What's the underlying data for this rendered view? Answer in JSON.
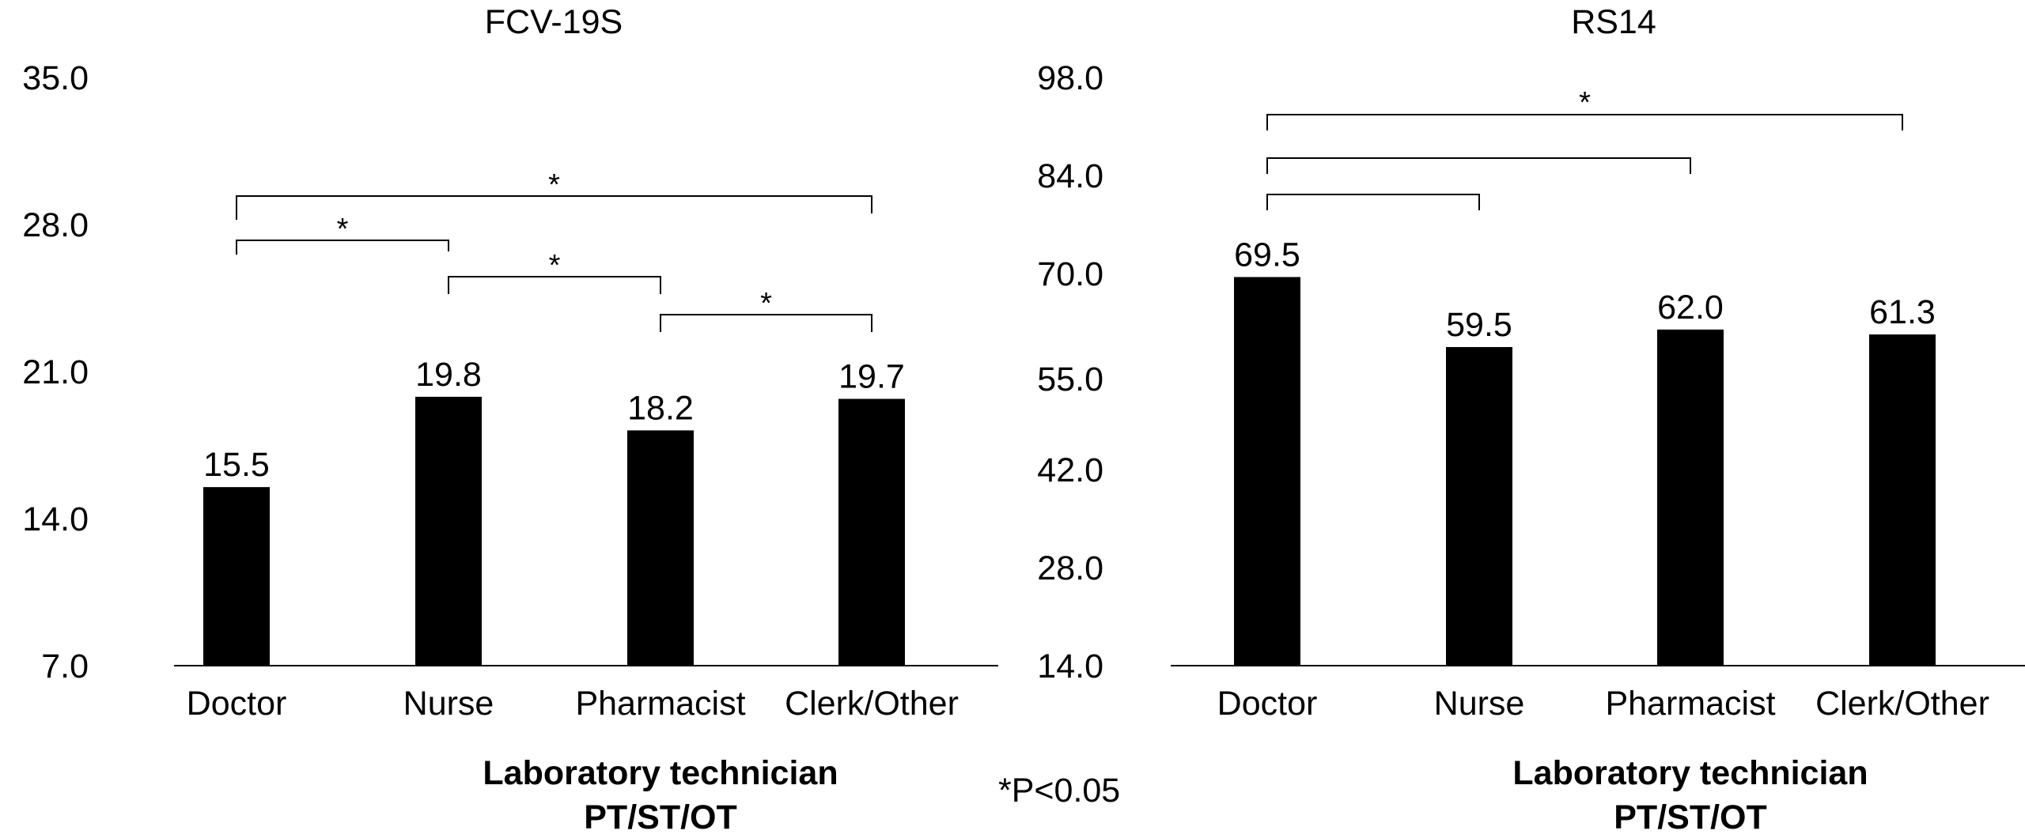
{
  "note": "*P<0.05",
  "chart_data": [
    {
      "type": "bar",
      "title": "FCV-19S",
      "categories": [
        "Doctor",
        "Nurse",
        "Pharmacist",
        "Clerk/Other"
      ],
      "values": [
        15.5,
        19.8,
        18.2,
        19.7
      ],
      "value_labels": [
        "15.5",
        "19.8",
        "18.2",
        "19.7"
      ],
      "ylim": [
        7.0,
        35.0
      ],
      "yticks": [
        "7.0",
        "14.0",
        "21.0",
        "28.0",
        "35.0"
      ],
      "xlabel": [
        "Laboratory technician",
        "PT/ST/OT"
      ],
      "grid": false,
      "bar_color": "#000000",
      "significance": [
        {
          "from": 0,
          "to": 3,
          "label": "*"
        },
        {
          "from": 0,
          "to": 1,
          "label": "*"
        },
        {
          "from": 1,
          "to": 2,
          "label": "*"
        },
        {
          "from": 2,
          "to": 3,
          "label": "*"
        }
      ]
    },
    {
      "type": "bar",
      "title": "RS14",
      "categories": [
        "Doctor",
        "Nurse",
        "Pharmacist",
        "Clerk/Other"
      ],
      "values": [
        69.5,
        59.5,
        62.0,
        61.3
      ],
      "value_labels": [
        "69.5",
        "59.5",
        "62.0",
        "61.3"
      ],
      "ylim": [
        14.0,
        98.0
      ],
      "yticks": [
        "14.0",
        "28.0",
        "42.0",
        "55.0",
        "70.0",
        "84.0",
        "98.0"
      ],
      "xlabel": [
        "Laboratory technician",
        "PT/ST/OT"
      ],
      "grid": false,
      "bar_color": "#000000",
      "significance": [
        {
          "from": 0,
          "to": 3,
          "label": "*"
        },
        {
          "from": 0,
          "to": 2,
          "label": ""
        },
        {
          "from": 0,
          "to": 1,
          "label": ""
        }
      ]
    }
  ]
}
